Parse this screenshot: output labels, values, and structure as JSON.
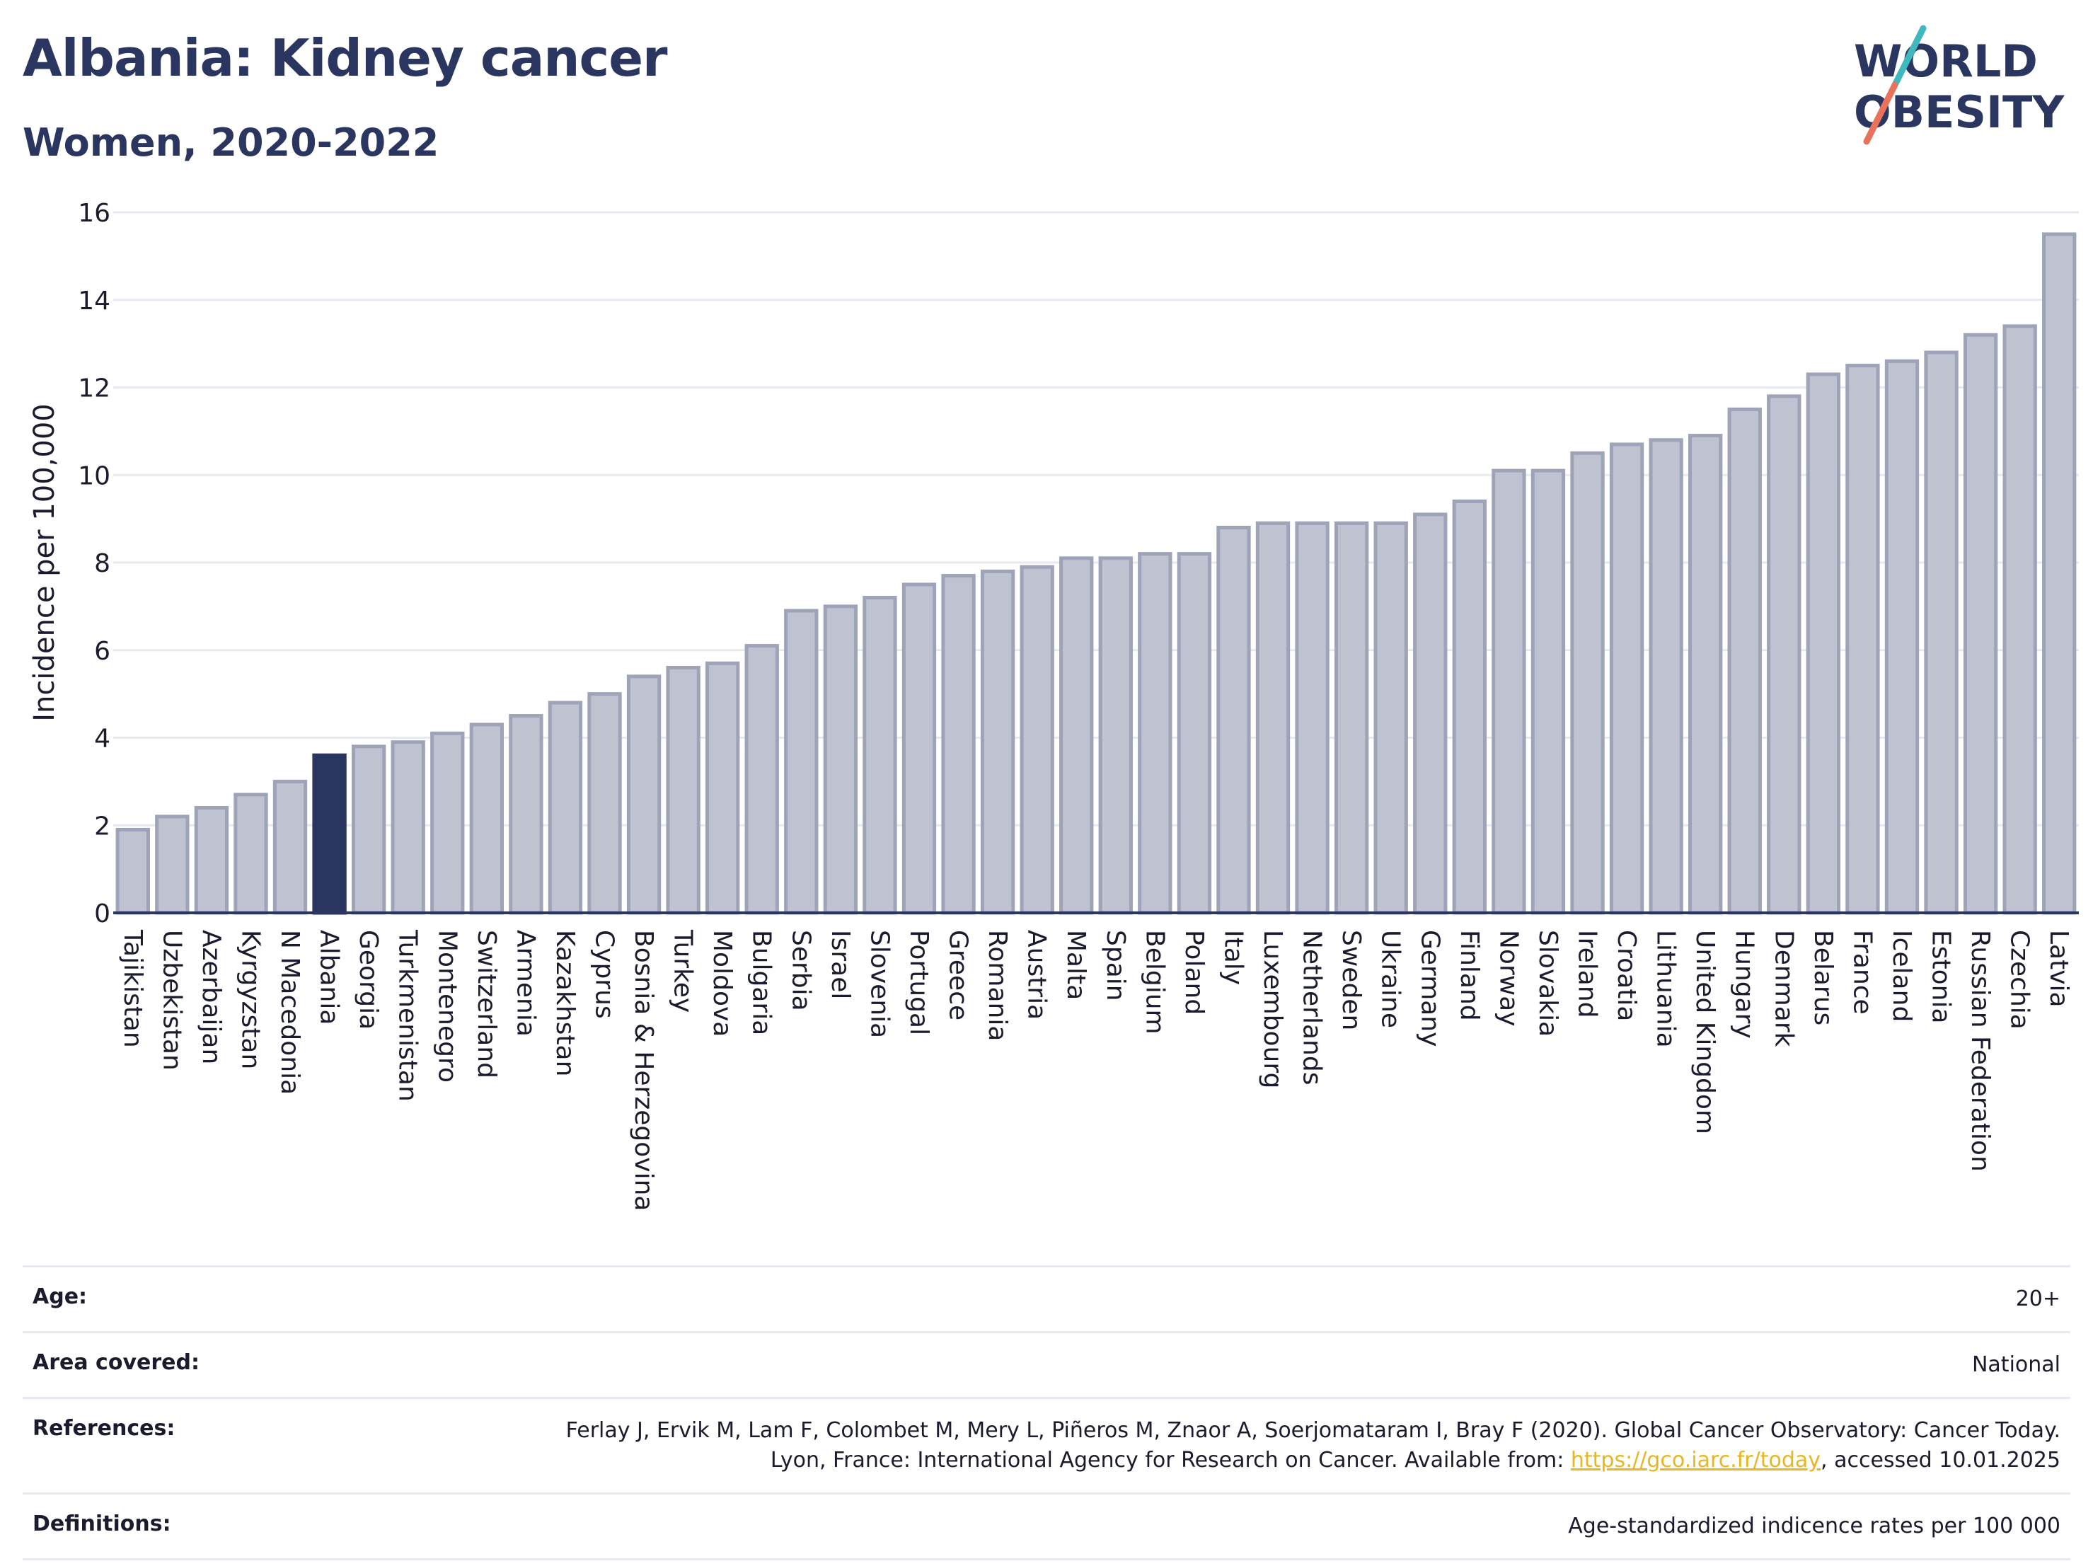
{
  "header": {
    "title": "Albania: Kidney cancer",
    "subtitle": "Women, 2020-2022"
  },
  "logo": {
    "line1": "WORLD",
    "line2": "OBESITY",
    "colors": {
      "text": "#2a3560",
      "slash_teal": "#3fb8c0",
      "slash_coral": "#e8735a"
    }
  },
  "chart_data": {
    "type": "bar",
    "ylabel": "Incidence per 100,000",
    "xlabel": "",
    "ylim": [
      0,
      16
    ],
    "yticks": [
      0,
      2,
      4,
      6,
      8,
      10,
      12,
      14,
      16
    ],
    "grid": true,
    "highlight": "Albania",
    "colors": {
      "bar": "#bfc2d0",
      "bar_edge": "#9ea3b8",
      "highlight": "#2a3560",
      "grid": "#e6e9ef",
      "axis": "#2a3560"
    },
    "categories": [
      "Tajikistan",
      "Uzbekistan",
      "Azerbaijan",
      "Kyrgyzstan",
      "N Macedonia",
      "Albania",
      "Georgia",
      "Turkmenistan",
      "Montenegro",
      "Switzerland",
      "Armenia",
      "Kazakhstan",
      "Cyprus",
      "Bosnia & Herzegovina",
      "Turkey",
      "Moldova",
      "Bulgaria",
      "Serbia",
      "Israel",
      "Slovenia",
      "Portugal",
      "Greece",
      "Romania",
      "Austria",
      "Malta",
      "Spain",
      "Belgium",
      "Poland",
      "Italy",
      "Luxembourg",
      "Netherlands",
      "Sweden",
      "Ukraine",
      "Germany",
      "Finland",
      "Norway",
      "Slovakia",
      "Ireland",
      "Croatia",
      "Lithuania",
      "United Kingdom",
      "Hungary",
      "Denmark",
      "Belarus",
      "France",
      "Iceland",
      "Estonia",
      "Russian Federation",
      "Czechia",
      "Latvia"
    ],
    "values": [
      1.9,
      2.2,
      2.4,
      2.7,
      3.0,
      3.6,
      3.8,
      3.9,
      4.1,
      4.3,
      4.5,
      4.8,
      5.0,
      5.4,
      5.6,
      5.7,
      6.1,
      6.9,
      7.0,
      7.2,
      7.5,
      7.7,
      7.8,
      7.9,
      8.1,
      8.1,
      8.2,
      8.2,
      8.8,
      8.9,
      8.9,
      8.9,
      8.9,
      9.1,
      9.4,
      10.1,
      10.1,
      10.5,
      10.7,
      10.8,
      10.9,
      11.5,
      11.8,
      12.3,
      12.5,
      12.6,
      12.8,
      13.2,
      13.4,
      15.5
    ]
  },
  "info": {
    "age_label": "Age:",
    "age_value": "20+",
    "area_label": "Area covered:",
    "area_value": "National",
    "references_label": "References:",
    "references_text": "Ferlay J, Ervik M, Lam F, Colombet M, Mery L, Piñeros M, Znaor A, Soerjomataram I, Bray F (2020). Global Cancer Observatory: Cancer Today. Lyon, France: International Agency for Research on Cancer. Available from: ",
    "references_link": "https://gco.iarc.fr/today",
    "references_tail": ", accessed 10.01.2025",
    "definitions_label": "Definitions:",
    "definitions_value": "Age-standardized indicence rates per 100 000"
  }
}
